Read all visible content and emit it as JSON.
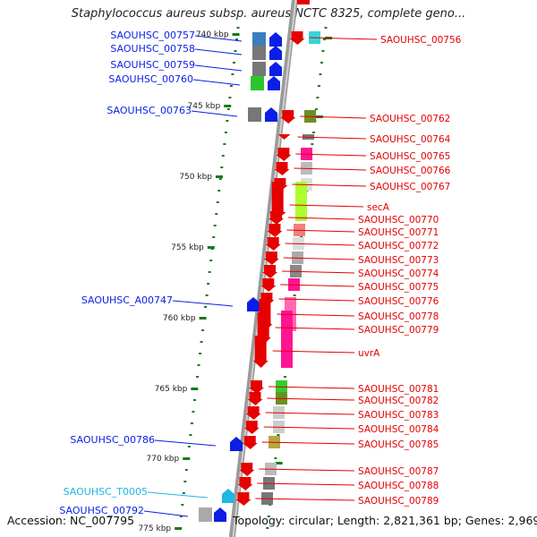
{
  "title": "Staphylococcus aureus subsp. aureus NCTC 8325, complete geno...",
  "accession_text": "Accession: NC_007795",
  "summary_text": "Topology: circular; Length: 2,821,361 bp; Genes: 2,969",
  "colors": {
    "left_label": "#1414c8",
    "right_label": "#e60000",
    "trna_label": "#20b8e0",
    "backbone": "#8c8c8c",
    "tick": "#1a7a1a"
  },
  "scale": {
    "ticks": [
      {
        "label": "740 kbp"
      },
      {
        "label": "745 kbp"
      },
      {
        "label": "750 kbp"
      },
      {
        "label": "755 kbp"
      },
      {
        "label": "760 kbp"
      },
      {
        "label": "765 kbp"
      },
      {
        "label": "770 kbp"
      },
      {
        "label": "775 kbp"
      }
    ]
  },
  "left_genes": [
    {
      "label": "SAOUHSC_00757",
      "color": "#3a7fbf",
      "icon": "blue-arrow-up"
    },
    {
      "label": "SAOUHSC_00758",
      "color": "#777777",
      "icon": "blue-arrow-up"
    },
    {
      "label": "SAOUHSC_00759",
      "color": "#777777",
      "icon": "blue-arrow-up"
    },
    {
      "label": "SAOUHSC_00760",
      "color": "#2dc42d",
      "icon": "blue-arrow-up"
    },
    {
      "label": "SAOUHSC_00763",
      "color": "#777777",
      "icon": "blue-arrow-up"
    },
    {
      "label": "SAOUHSC_A00747",
      "color": "",
      "icon": "blue-arrow-up"
    },
    {
      "label": "SAOUHSC_00786",
      "color": "",
      "icon": "blue-arrow-up"
    },
    {
      "label": "SAOUHSC_T0005",
      "color": "",
      "icon": "cyan-arrow-up",
      "kind": "trna"
    },
    {
      "label": "SAOUHSC_00792",
      "color": "#aaaaaa",
      "icon": "blue-arrow-up"
    }
  ],
  "right_genes": [
    {
      "label": "SAOUHSC_00756",
      "color": "#33d6dc"
    },
    {
      "label": "SAOUHSC_00762",
      "color": "#6b8e23"
    },
    {
      "label": "SAOUHSC_00764",
      "color": "#777777"
    },
    {
      "label": "SAOUHSC_00765",
      "color": "#ff1493"
    },
    {
      "label": "SAOUHSC_00766",
      "color": "#bbbbbb"
    },
    {
      "label": "SAOUHSC_00767",
      "color": "#dddddd"
    },
    {
      "label": "secA",
      "color": "#adff2f"
    },
    {
      "label": "SAOUHSC_00770",
      "color": ""
    },
    {
      "label": "SAOUHSC_00771",
      "color": "#f08080"
    },
    {
      "label": "SAOUHSC_00772",
      "color": "#dddddd"
    },
    {
      "label": "SAOUHSC_00773",
      "color": "#aaaaaa"
    },
    {
      "label": "SAOUHSC_00774",
      "color": "#888888"
    },
    {
      "label": "SAOUHSC_00775",
      "color": "#ff1493"
    },
    {
      "label": "SAOUHSC_00776",
      "color": ""
    },
    {
      "label": "SAOUHSC_00778",
      "color": "#ff69b4"
    },
    {
      "label": "SAOUHSC_00779",
      "color": "#ff1493"
    },
    {
      "label": "uvrA",
      "color": "#ff1493"
    },
    {
      "label": "SAOUHSC_00781",
      "color": "#32cd32"
    },
    {
      "label": "SAOUHSC_00782",
      "color": "#6b8e23"
    },
    {
      "label": "SAOUHSC_00783",
      "color": "#cccccc"
    },
    {
      "label": "SAOUHSC_00784",
      "color": "#cccccc"
    },
    {
      "label": "SAOUHSC_00785",
      "color": "#b5a642"
    },
    {
      "label": "SAOUHSC_00787",
      "color": "#bbbbbb"
    },
    {
      "label": "SAOUHSC_00788",
      "color": "#777777"
    },
    {
      "label": "SAOUHSC_00789",
      "color": "#777777"
    }
  ]
}
